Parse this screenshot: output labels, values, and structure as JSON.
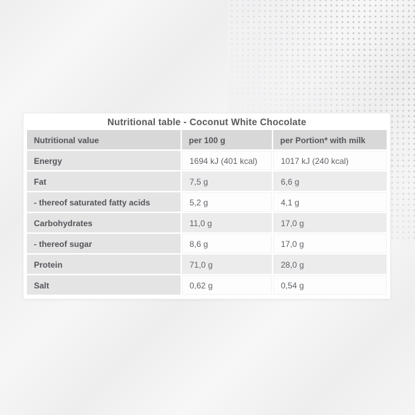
{
  "card": {
    "title": "Nutritional table - Coconut White Chocolate"
  },
  "table": {
    "headers": [
      "Nutritional value",
      "per 100 g",
      "per Portion* with milk"
    ],
    "rows": [
      {
        "label": "Energy",
        "per_100g": "1694 kJ (401 kcal)",
        "per_portion": "1017 kJ (240 kcal)"
      },
      {
        "label": "Fat",
        "per_100g": "7,5 g",
        "per_portion": "6,6 g"
      },
      {
        "label": "- thereof saturated fatty acids",
        "per_100g": "5,2 g",
        "per_portion": "4,1 g"
      },
      {
        "label": "Carbohydrates",
        "per_100g": "11,0 g",
        "per_portion": "17,0 g"
      },
      {
        "label": "- thereof sugar",
        "per_100g": "8,6 g",
        "per_portion": "17,0 g"
      },
      {
        "label": "Protein",
        "per_100g": "71,0 g",
        "per_portion": "28,0 g"
      },
      {
        "label": "Salt",
        "per_100g": "0,62 g",
        "per_portion": "0,54 g"
      }
    ]
  },
  "colors": {
    "page_background": "#f2f2f3",
    "card_background": "#ffffff",
    "header_cell_background": "#d8d8d8",
    "label_cell_background": "#e4e4e5",
    "value_cell_background": "#fdfdfd",
    "alt_value_cell_background": "#ececed",
    "title_text": "#595959",
    "cell_text": "#606368",
    "dot_pattern": "#c7c7c9"
  }
}
